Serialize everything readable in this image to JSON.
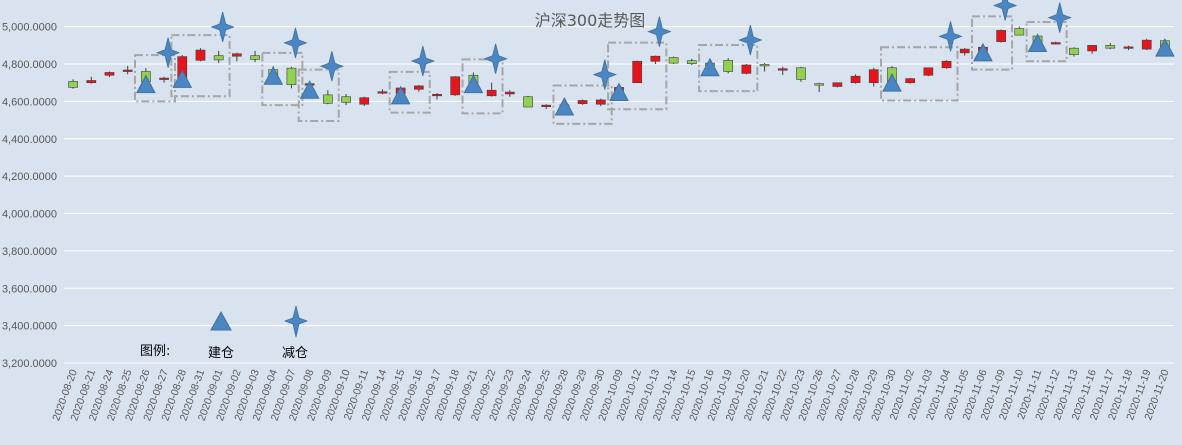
{
  "chart_data": {
    "type": "candlestick",
    "title": "沪深300走势图",
    "ylim": [
      3200,
      5100
    ],
    "yticks": [
      3200,
      3400,
      3600,
      3800,
      4000,
      4200,
      4400,
      4600,
      4800,
      5000
    ],
    "ytick_labels": [
      "3,200.0000",
      "3,400.0000",
      "3,600.0000",
      "3,800.0000",
      "4,000.0000",
      "4,200.0000",
      "4,400.0000",
      "4,600.0000",
      "4,800.0000",
      "5,000.0000"
    ],
    "grid": true,
    "colors": {
      "up": "#e8141b",
      "down": "#92d050",
      "marker": "#4a86c4",
      "box": "#a6a6a6",
      "grid": "#ffffff",
      "text": "#595959"
    },
    "dates": [
      "2020-08-20",
      "2020-08-21",
      "2020-08-24",
      "2020-08-25",
      "2020-08-26",
      "2020-08-27",
      "2020-08-28",
      "2020-08-31",
      "2020-09-01",
      "2020-09-02",
      "2020-09-03",
      "2020-09-04",
      "2020-09-07",
      "2020-09-08",
      "2020-09-09",
      "2020-09-10",
      "2020-09-11",
      "2020-09-14",
      "2020-09-15",
      "2020-09-16",
      "2020-09-17",
      "2020-09-18",
      "2020-09-21",
      "2020-09-22",
      "2020-09-23",
      "2020-09-24",
      "2020-09-25",
      "2020-09-28",
      "2020-09-29",
      "2020-09-30",
      "2020-10-09",
      "2020-10-12",
      "2020-10-13",
      "2020-10-14",
      "2020-10-15",
      "2020-10-16",
      "2020-10-19",
      "2020-10-20",
      "2020-10-21",
      "2020-10-22",
      "2020-10-23",
      "2020-10-26",
      "2020-10-27",
      "2020-10-28",
      "2020-10-29",
      "2020-10-30",
      "2020-11-02",
      "2020-11-03",
      "2020-11-04",
      "2020-11-05",
      "2020-11-06",
      "2020-11-09",
      "2020-11-10",
      "2020-11-11",
      "2020-11-12",
      "2020-11-13",
      "2020-11-16",
      "2020-11-17",
      "2020-11-18",
      "2020-11-19",
      "2020-11-20"
    ],
    "ohlc": [
      [
        4707,
        4718,
        4668,
        4675
      ],
      [
        4700,
        4732,
        4695,
        4712
      ],
      [
        4740,
        4760,
        4730,
        4755
      ],
      [
        4760,
        4790,
        4745,
        4768
      ],
      [
        4760,
        4778,
        4690,
        4705
      ],
      [
        4718,
        4732,
        4700,
        4725
      ],
      [
        4720,
        4848,
        4718,
        4840
      ],
      [
        4820,
        4885,
        4815,
        4875
      ],
      [
        4845,
        4870,
        4805,
        4822
      ],
      [
        4842,
        4860,
        4815,
        4855
      ],
      [
        4845,
        4870,
        4810,
        4825
      ],
      [
        4770,
        4790,
        4735,
        4740
      ],
      [
        4778,
        4785,
        4670,
        4690
      ],
      [
        4690,
        4700,
        4660,
        4695
      ],
      [
        4635,
        4660,
        4585,
        4590
      ],
      [
        4625,
        4640,
        4580,
        4595
      ],
      [
        4585,
        4625,
        4575,
        4620
      ],
      [
        4650,
        4665,
        4638,
        4652
      ],
      [
        4642,
        4672,
        4630,
        4672
      ],
      [
        4665,
        4688,
        4652,
        4683
      ],
      [
        4630,
        4645,
        4610,
        4638
      ],
      [
        4635,
        4735,
        4630,
        4732
      ],
      [
        4740,
        4755,
        4690,
        4690
      ],
      [
        4630,
        4700,
        4626,
        4660
      ],
      [
        4640,
        4660,
        4625,
        4650
      ],
      [
        4625,
        4630,
        4570,
        4570
      ],
      [
        4575,
        4585,
        4560,
        4580
      ],
      [
        4575,
        4590,
        4570,
        4582
      ],
      [
        4588,
        4610,
        4582,
        4605
      ],
      [
        4585,
        4615,
        4575,
        4608
      ],
      [
        4655,
        4680,
        4648,
        4675
      ],
      [
        4700,
        4818,
        4700,
        4815
      ],
      [
        4815,
        4845,
        4800,
        4842
      ],
      [
        4835,
        4840,
        4800,
        4805
      ],
      [
        4818,
        4828,
        4795,
        4802
      ],
      [
        4805,
        4820,
        4780,
        4790
      ],
      [
        4820,
        4832,
        4750,
        4760
      ],
      [
        4750,
        4800,
        4745,
        4795
      ],
      [
        4798,
        4805,
        4760,
        4792
      ],
      [
        4770,
        4785,
        4742,
        4775
      ],
      [
        4780,
        4785,
        4705,
        4718
      ],
      [
        4695,
        4700,
        4650,
        4688
      ],
      [
        4680,
        4700,
        4675,
        4700
      ],
      [
        4700,
        4745,
        4695,
        4735
      ],
      [
        4700,
        4780,
        4680,
        4770
      ],
      [
        4780,
        4790,
        4698,
        4698
      ],
      [
        4700,
        4725,
        4695,
        4722
      ],
      [
        4740,
        4780,
        4735,
        4780
      ],
      [
        4780,
        4820,
        4775,
        4815
      ],
      [
        4860,
        4885,
        4845,
        4880
      ],
      [
        4870,
        4900,
        4860,
        4890
      ],
      [
        4920,
        4985,
        4915,
        4980
      ],
      [
        4990,
        5000,
        4955,
        4955
      ],
      [
        4950,
        4955,
        4910,
        4915
      ],
      [
        4910,
        4920,
        4905,
        4915
      ],
      [
        4885,
        4890,
        4840,
        4850
      ],
      [
        4870,
        4900,
        4855,
        4900
      ],
      [
        4900,
        4912,
        4880,
        4885
      ],
      [
        4890,
        4898,
        4875,
        4892
      ],
      [
        4880,
        4935,
        4875,
        4928
      ],
      [
        4925,
        4935,
        4885,
        4885
      ]
    ],
    "build_markers": [
      4,
      6,
      11,
      13,
      18,
      22,
      27,
      30,
      35,
      45,
      50,
      53,
      60
    ],
    "reduce_markers": [
      5,
      8,
      12,
      14,
      19,
      23,
      29,
      32,
      37,
      48,
      51,
      54
    ],
    "highlight_boxes": [
      [
        4,
        5
      ],
      [
        6,
        8
      ],
      [
        11,
        12
      ],
      [
        13,
        14
      ],
      [
        18,
        19
      ],
      [
        22,
        23
      ],
      [
        27,
        29
      ],
      [
        30,
        32
      ],
      [
        35,
        37
      ],
      [
        45,
        48
      ],
      [
        50,
        51
      ],
      [
        53,
        54
      ]
    ],
    "legend": {
      "label": "图例:",
      "build": "建仓",
      "reduce": "减仓"
    }
  }
}
